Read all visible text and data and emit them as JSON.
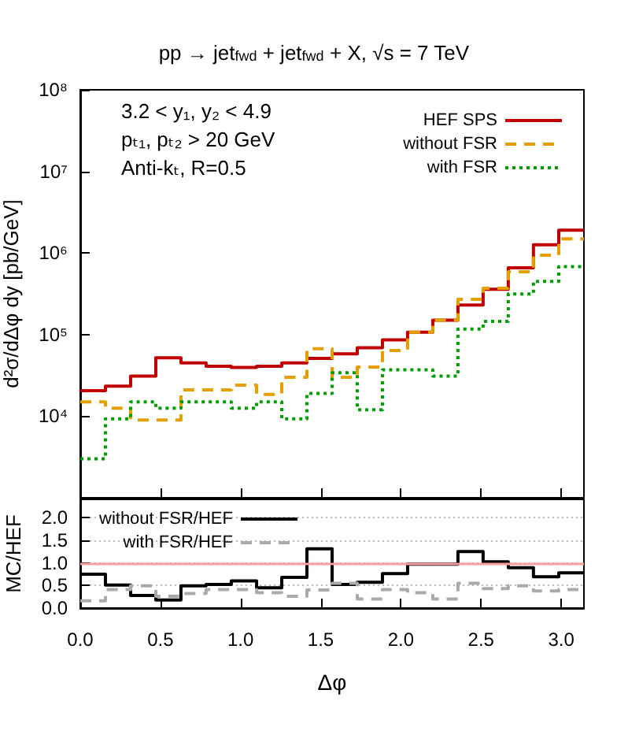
{
  "chart_data": [
    {
      "type": "histogram",
      "title": "pp → jet$_{fwd}$ + jet$_{fwd}$ + X, √s = 7 TeV",
      "ylabel": "d²σ/dΔφ dy [pb/GeV]",
      "annotations": [
        "3.2 < y₁, y₂ < 4.9",
        "pₜ₁, pₜ₂ > 20 GeV",
        "Anti-kₜ, R=0.5"
      ],
      "bins": [
        0,
        0.157,
        0.314,
        0.471,
        0.628,
        0.785,
        0.942,
        1.1,
        1.257,
        1.414,
        1.571,
        1.728,
        1.885,
        2.042,
        2.199,
        2.356,
        2.513,
        2.67,
        2.827,
        2.985,
        3.142
      ],
      "series": [
        {
          "name": "HEF SPS",
          "color": "#c00000",
          "line_style": "solid",
          "values": [
            20500,
            23400,
            31000,
            52000,
            45000,
            41000,
            39500,
            41000,
            45000,
            51000,
            58000,
            69000,
            86000,
            107000,
            150000,
            230000,
            360000,
            660000,
            1260000,
            1900000
          ]
        },
        {
          "name": "without FSR",
          "color": "#e69f00",
          "line_style": "dashed",
          "values": [
            15000,
            12500,
            9000,
            9000,
            21000,
            21000,
            24000,
            18500,
            30000,
            67000,
            30000,
            40000,
            64000,
            107000,
            150000,
            270000,
            370000,
            590000,
            940000,
            1490000
          ]
        },
        {
          "name": "with FSR",
          "color": "#009e00",
          "line_style": "dotted",
          "values": [
            3000,
            9300,
            15000,
            12500,
            15000,
            15000,
            12500,
            15000,
            9300,
            19000,
            34000,
            12000,
            37000,
            37000,
            31000,
            117000,
            145000,
            315000,
            450000,
            680000
          ]
        }
      ],
      "xlim": [
        0,
        3.142
      ],
      "xticks": [
        0,
        0.5,
        1,
        1.5,
        2,
        2.5,
        3
      ],
      "ylim": [
        1000,
        100000000
      ],
      "log": "y",
      "yticks": [
        {
          "value": 10000,
          "label": "10⁴"
        },
        {
          "value": 100000,
          "label": "10⁵"
        },
        {
          "value": 1000000,
          "label": "10⁶"
        },
        {
          "value": 10000000,
          "label": "10⁷"
        },
        {
          "value": 100000000,
          "label": "10⁸"
        }
      ],
      "tick_labels": "y",
      "legend": "top right"
    },
    {
      "type": "histogram",
      "xlabel": "Δφ",
      "ylabel": "MC/HEF",
      "bins": [
        0,
        0.157,
        0.314,
        0.471,
        0.628,
        0.785,
        0.942,
        1.1,
        1.257,
        1.414,
        1.571,
        1.728,
        1.885,
        2.042,
        2.199,
        2.356,
        2.513,
        2.67,
        2.827,
        2.985,
        3.142
      ],
      "series": [
        {
          "name": "without FSR/HEF",
          "color": "#000000",
          "line_style": "solid",
          "values": [
            0.75,
            0.51,
            0.28,
            0.18,
            0.49,
            0.52,
            0.6,
            0.45,
            0.68,
            1.31,
            0.52,
            0.57,
            0.76,
            0.97,
            0.97,
            1.25,
            1.02,
            0.89,
            0.69,
            0.78
          ]
        },
        {
          "name": "with FSR/HEF",
          "color": "#aaaaaa",
          "line_style": "dashed",
          "values": [
            0.16,
            0.41,
            0.49,
            0.26,
            0.32,
            0.41,
            0.41,
            0.34,
            0.26,
            0.4,
            0.55,
            0.2,
            0.41,
            0.34,
            0.2,
            0.55,
            0.43,
            0.49,
            0.38,
            0.41
          ]
        }
      ],
      "xlim": [
        0,
        3.142
      ],
      "xticks": [
        {
          "value": 0,
          "label": "0.0"
        },
        {
          "value": 0.5,
          "label": "0.5"
        },
        {
          "value": 1,
          "label": "1.0"
        },
        {
          "value": 1.5,
          "label": "1.5"
        },
        {
          "value": 2,
          "label": "2.0"
        },
        {
          "value": 2.5,
          "label": "2.5"
        },
        {
          "value": 3,
          "label": "3.0"
        }
      ],
      "ylim": [
        0,
        2.4
      ],
      "yticks": [
        {
          "value": 0,
          "label": "0.0"
        },
        {
          "value": 0.5,
          "label": "0.5"
        },
        {
          "value": 1,
          "label": "1.0"
        },
        {
          "value": 1.5,
          "label": "1.5"
        },
        {
          "value": 2,
          "label": "2.0"
        }
      ],
      "ref_lines": [
        {
          "axis": "y",
          "value": 1,
          "color": "#f4a0a0"
        }
      ],
      "grid": "y",
      "legend": "top left"
    }
  ]
}
